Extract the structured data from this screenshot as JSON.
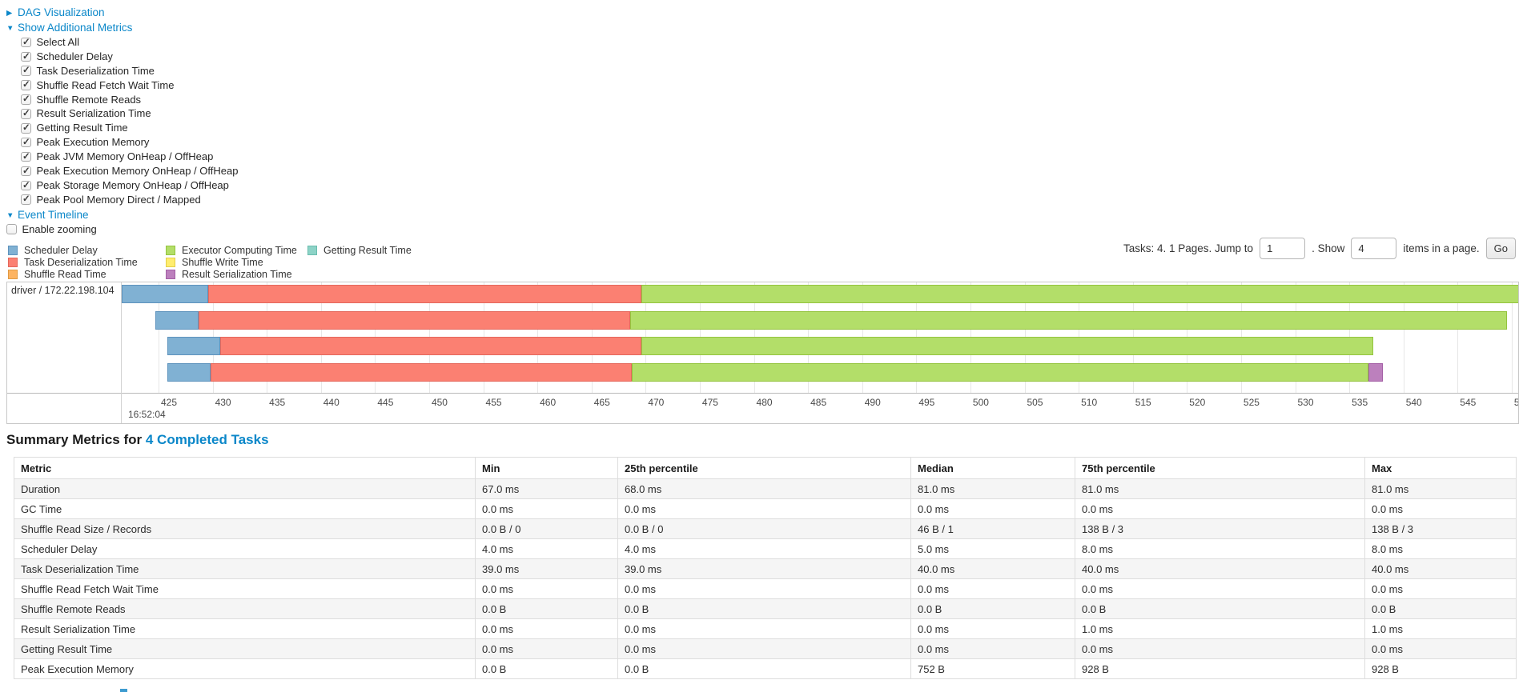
{
  "controls": {
    "dag_link": "DAG Visualization",
    "dag_arrow": "▶",
    "metrics_link": "Show Additional Metrics",
    "metrics_arrow": "▼",
    "checkboxes": [
      {
        "label": "Select All",
        "checked": true
      },
      {
        "label": "Scheduler Delay",
        "checked": true
      },
      {
        "label": "Task Deserialization Time",
        "checked": true
      },
      {
        "label": "Shuffle Read Fetch Wait Time",
        "checked": true
      },
      {
        "label": "Shuffle Remote Reads",
        "checked": true
      },
      {
        "label": "Result Serialization Time",
        "checked": true
      },
      {
        "label": "Getting Result Time",
        "checked": true
      },
      {
        "label": "Peak Execution Memory",
        "checked": true
      },
      {
        "label": "Peak JVM Memory OnHeap / OffHeap",
        "checked": true
      },
      {
        "label": "Peak Execution Memory OnHeap / OffHeap",
        "checked": true
      },
      {
        "label": "Peak Storage Memory OnHeap / OffHeap",
        "checked": true
      },
      {
        "label": "Peak Pool Memory Direct / Mapped",
        "checked": true
      }
    ],
    "event_timeline_link": "Event Timeline",
    "event_timeline_arrow": "▼",
    "enable_zooming": {
      "label": "Enable zooming",
      "checked": false
    }
  },
  "legend": {
    "columns": [
      [
        {
          "key": "scheduler_delay",
          "label": "Scheduler Delay",
          "color": "#80B1D3",
          "border": "#5e93bd"
        },
        {
          "key": "task_deserialization",
          "label": "Task Deserialization Time",
          "color": "#FB8072",
          "border": "#e4685c"
        },
        {
          "key": "shuffle_read",
          "label": "Shuffle Read Time",
          "color": "#FDB462",
          "border": "#e09a43"
        }
      ],
      [
        {
          "key": "executor_computing",
          "label": "Executor Computing Time",
          "color": "#B3DE69",
          "border": "#94c43e"
        },
        {
          "key": "shuffle_write",
          "label": "Shuffle Write Time",
          "color": "#FFED6F",
          "border": "#e3cf49"
        },
        {
          "key": "result_serialization",
          "label": "Result Serialization Time",
          "color": "#BC80BD",
          "border": "#a35fa5"
        }
      ],
      [
        {
          "key": "getting_result",
          "label": "Getting Result Time",
          "color": "#8DD3C7",
          "border": "#6bbdae"
        }
      ]
    ]
  },
  "pagination": {
    "summary": "Tasks: 4. 1 Pages. Jump to",
    "page_value": "1",
    "show_label": ". Show",
    "page_size_value": "4",
    "items_label": "items in a page.",
    "go_label": "Go"
  },
  "chart_data": {
    "type": "timeline",
    "row_label": "driver / 172.22.198.104",
    "major_tick_label": "16:52:04",
    "x_unit": "ms within second 16:52:04",
    "xlim": [
      421.6,
      550.6
    ],
    "ticks": [
      {
        "t": 425,
        "label": "425"
      },
      {
        "t": 430,
        "label": "430"
      },
      {
        "t": 435,
        "label": "435"
      },
      {
        "t": 440,
        "label": "440"
      },
      {
        "t": 445,
        "label": "445"
      },
      {
        "t": 450,
        "label": "450"
      },
      {
        "t": 455,
        "label": "455"
      },
      {
        "t": 460,
        "label": "460"
      },
      {
        "t": 465,
        "label": "465"
      },
      {
        "t": 470,
        "label": "470"
      },
      {
        "t": 475,
        "label": "475"
      },
      {
        "t": 480,
        "label": "480"
      },
      {
        "t": 485,
        "label": "485"
      },
      {
        "t": 490,
        "label": "490"
      },
      {
        "t": 495,
        "label": "495"
      },
      {
        "t": 500,
        "label": "500"
      },
      {
        "t": 505,
        "label": "505"
      },
      {
        "t": 510,
        "label": "510"
      },
      {
        "t": 515,
        "label": "515"
      },
      {
        "t": 520,
        "label": "520"
      },
      {
        "t": 525,
        "label": "525"
      },
      {
        "t": 530,
        "label": "530"
      },
      {
        "t": 535,
        "label": "535"
      },
      {
        "t": 540,
        "label": "540"
      },
      {
        "t": 545,
        "label": "545"
      },
      {
        "t": 550,
        "label": "5"
      }
    ],
    "tasks": [
      {
        "segments": [
          {
            "type": "scheduler_delay",
            "start": 421.6,
            "end": 429.6
          },
          {
            "type": "task_deserialization",
            "start": 429.6,
            "end": 469.6
          },
          {
            "type": "executor_computing",
            "start": 469.6,
            "end": 551.0
          }
        ]
      },
      {
        "segments": [
          {
            "type": "scheduler_delay",
            "start": 424.7,
            "end": 428.7
          },
          {
            "type": "task_deserialization",
            "start": 428.7,
            "end": 468.6
          },
          {
            "type": "executor_computing",
            "start": 468.6,
            "end": 549.6
          }
        ]
      },
      {
        "segments": [
          {
            "type": "scheduler_delay",
            "start": 425.8,
            "end": 430.7
          },
          {
            "type": "task_deserialization",
            "start": 430.7,
            "end": 469.6
          },
          {
            "type": "executor_computing",
            "start": 469.6,
            "end": 537.2
          }
        ]
      },
      {
        "segments": [
          {
            "type": "scheduler_delay",
            "start": 425.8,
            "end": 429.8
          },
          {
            "type": "task_deserialization",
            "start": 429.8,
            "end": 468.7
          },
          {
            "type": "executor_computing",
            "start": 468.7,
            "end": 536.8
          },
          {
            "type": "result_serialization",
            "start": 536.8,
            "end": 538.1
          }
        ]
      }
    ]
  },
  "summary": {
    "title_prefix": "Summary Metrics for",
    "title_link": "4 Completed Tasks",
    "columns": [
      "Metric",
      "Min",
      "25th percentile",
      "Median",
      "75th percentile",
      "Max"
    ],
    "rows": [
      [
        "Duration",
        "67.0 ms",
        "68.0 ms",
        "81.0 ms",
        "81.0 ms",
        "81.0 ms"
      ],
      [
        "GC Time",
        "0.0 ms",
        "0.0 ms",
        "0.0 ms",
        "0.0 ms",
        "0.0 ms"
      ],
      [
        "Shuffle Read Size / Records",
        "0.0 B / 0",
        "0.0 B / 0",
        "46 B / 1",
        "138 B / 3",
        "138 B / 3"
      ],
      [
        "Scheduler Delay",
        "4.0 ms",
        "4.0 ms",
        "5.0 ms",
        "8.0 ms",
        "8.0 ms"
      ],
      [
        "Task Deserialization Time",
        "39.0 ms",
        "39.0 ms",
        "40.0 ms",
        "40.0 ms",
        "40.0 ms"
      ],
      [
        "Shuffle Read Fetch Wait Time",
        "0.0 ms",
        "0.0 ms",
        "0.0 ms",
        "0.0 ms",
        "0.0 ms"
      ],
      [
        "Shuffle Remote Reads",
        "0.0 B",
        "0.0 B",
        "0.0 B",
        "0.0 B",
        "0.0 B"
      ],
      [
        "Result Serialization Time",
        "0.0 ms",
        "0.0 ms",
        "0.0 ms",
        "1.0 ms",
        "1.0 ms"
      ],
      [
        "Getting Result Time",
        "0.0 ms",
        "0.0 ms",
        "0.0 ms",
        "0.0 ms",
        "0.0 ms"
      ],
      [
        "Peak Execution Memory",
        "0.0 B",
        "0.0 B",
        "752 B",
        "928 B",
        "928 B"
      ]
    ]
  }
}
